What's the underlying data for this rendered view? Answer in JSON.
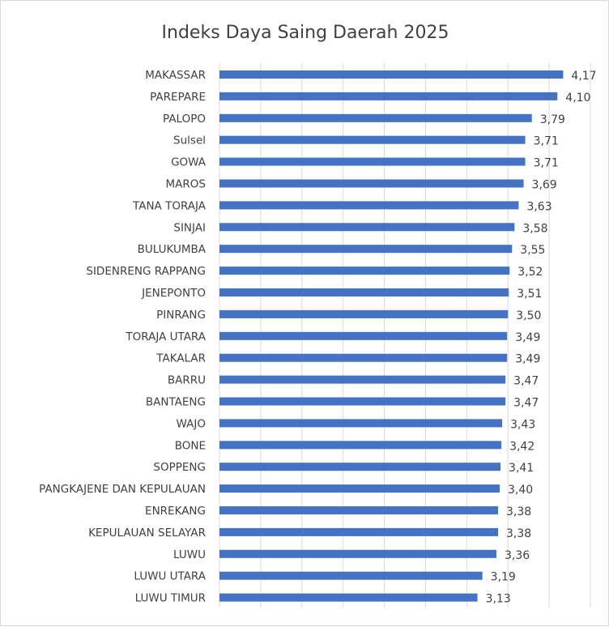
{
  "chart_data": {
    "type": "bar",
    "orientation": "horizontal",
    "title": "Indeks Daya Saing Daerah 2025",
    "xlabel": "",
    "ylabel": "",
    "xlim": [
      0,
      4.5
    ],
    "grid": true,
    "tick_labels_shown": false,
    "legend": "none",
    "bar_color": "#4472C4",
    "categories": [
      "MAKASSAR",
      "PAREPARE",
      "PALOPO",
      "Sulsel",
      "GOWA",
      "MAROS",
      "TANA TORAJA",
      "SINJAI",
      "BULUKUMBA",
      "SIDENRENG RAPPANG",
      "JENEPONTO",
      "PINRANG",
      "TORAJA UTARA",
      "TAKALAR",
      "BARRU",
      "BANTAENG",
      "WAJO",
      "BONE",
      "SOPPENG",
      "PANGKAJENE DAN KEPULAUAN",
      "ENREKANG",
      "KEPULAUAN SELAYAR",
      "LUWU",
      "LUWU UTARA",
      "LUWU TIMUR"
    ],
    "values": [
      4.17,
      4.1,
      3.79,
      3.71,
      3.71,
      3.69,
      3.63,
      3.58,
      3.55,
      3.52,
      3.51,
      3.5,
      3.49,
      3.49,
      3.47,
      3.47,
      3.43,
      3.42,
      3.41,
      3.4,
      3.38,
      3.38,
      3.36,
      3.19,
      3.13
    ],
    "data_labels": [
      "4,17",
      "4,10",
      "3,79",
      "3,71",
      "3,71",
      "3,69",
      "3,63",
      "3,58",
      "3,55",
      "3,52",
      "3,51",
      "3,50",
      "3,49",
      "3,49",
      "3,47",
      "3,47",
      "3,43",
      "3,42",
      "3,41",
      "3,40",
      "3,38",
      "3,38",
      "3,36",
      "3,19",
      "3,13"
    ]
  }
}
